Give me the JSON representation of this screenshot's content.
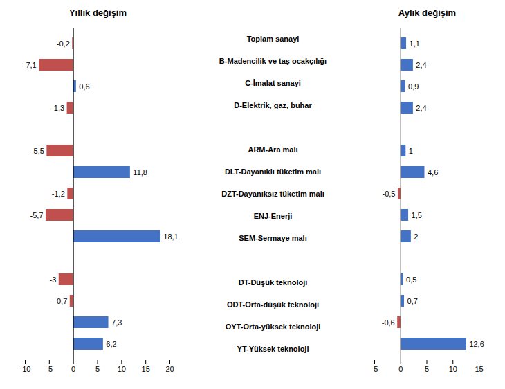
{
  "chart_data": [
    {
      "type": "bar",
      "orientation": "horizontal",
      "title": "Yıllık değişim",
      "categories": [
        "Toplam sanayi",
        "B-Madencilik ve taş ocakçılığı",
        "C-İmalat sanayi",
        "D-Elektrik, gaz, buhar",
        null,
        "ARM-Ara malı",
        "DLT-Dayanıklı tüketim malı",
        "DZT-Dayanıksız tüketim malı",
        "ENJ-Enerji",
        "SEM-Sermaye malı",
        null,
        "DT-Düşük teknoloji",
        "ODT-Orta-düşük teknoloji",
        "OYT-Orta-yüksek teknoloji",
        "YT-Yüksek teknoloji"
      ],
      "values": [
        -0.2,
        -7.1,
        0.6,
        -1.3,
        null,
        -5.5,
        11.8,
        -1.2,
        -5.7,
        18.1,
        null,
        -3.0,
        -0.7,
        7.3,
        6.2
      ],
      "value_labels": [
        "-0,2",
        "-7,1",
        "0,6",
        "-1,3",
        null,
        "-5,5",
        "11,8",
        "-1,2",
        "-5,7",
        "18,1",
        null,
        "-3",
        "-0,7",
        "7,3",
        "6,2"
      ],
      "colors": [
        "#C0504D",
        "#C0504D",
        "#4472C4",
        "#C0504D",
        null,
        "#C0504D",
        "#4472C4",
        "#C0504D",
        "#C0504D",
        "#4472C4",
        null,
        "#C0504D",
        "#C0504D",
        "#4472C4",
        "#4472C4"
      ],
      "xlim": [
        -10,
        20
      ],
      "xticks": [
        -10,
        -5,
        0,
        5,
        10,
        15,
        20
      ],
      "data_labels": true,
      "grid": false
    },
    {
      "type": "bar",
      "orientation": "horizontal",
      "title": "Aylık değişim",
      "categories": [
        "Toplam sanayi",
        "B-Madencilik ve taş ocakçılığı",
        "C-İmalat sanayi",
        "D-Elektrik, gaz, buhar",
        null,
        "ARM-Ara malı",
        "DLT-Dayanıklı tüketim malı",
        "DZT-Dayanıksız tüketim malı",
        "ENJ-Enerji",
        "SEM-Sermaye malı",
        null,
        "DT-Düşük teknoloji",
        "ODT-Orta-düşük teknoloji",
        "OYT-Orta-yüksek teknoloji",
        "YT-Yüksek teknoloji"
      ],
      "values": [
        1.1,
        2.4,
        0.9,
        2.4,
        null,
        1.0,
        4.6,
        -0.5,
        1.5,
        2.0,
        null,
        0.5,
        0.7,
        -0.6,
        12.6
      ],
      "value_labels": [
        "1,1",
        "2,4",
        "0,9",
        "2,4",
        null,
        "1",
        "4,6",
        "-0,5",
        "1,5",
        "2",
        null,
        "0,5",
        "0,7",
        "-0,6",
        "12,6"
      ],
      "colors": [
        "#4472C4",
        "#4472C4",
        "#4472C4",
        "#4472C4",
        null,
        "#4472C4",
        "#4472C4",
        "#C0504D",
        "#4472C4",
        "#4472C4",
        null,
        "#4472C4",
        "#4472C4",
        "#C0504D",
        "#4472C4"
      ],
      "xlim": [
        -5,
        15
      ],
      "xticks": [
        -5,
        0,
        5,
        10,
        15
      ],
      "data_labels": true,
      "grid": false
    }
  ]
}
